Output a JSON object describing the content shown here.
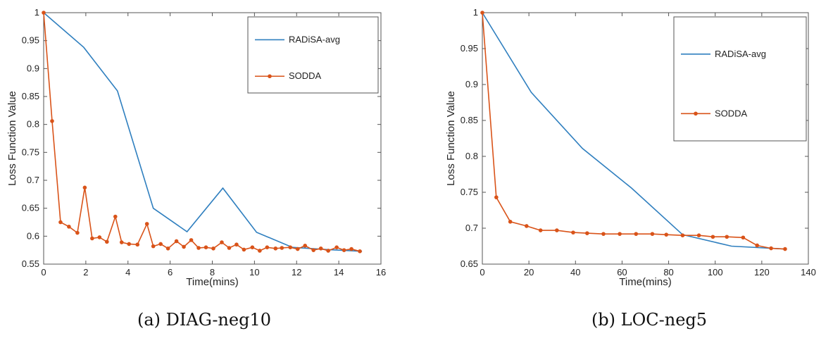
{
  "colors": {
    "radisa": "#2f7fbf",
    "sodda": "#d95319",
    "axis": "#555555"
  },
  "chart_data": [
    {
      "type": "line",
      "caption": "(a) DIAG-neg10",
      "xlabel": "Time(mins)",
      "ylabel": "Loss Function Value",
      "xlim": [
        0,
        16
      ],
      "ylim": [
        0.55,
        1
      ],
      "xticks": [
        0,
        2,
        4,
        6,
        8,
        10,
        12,
        14,
        16
      ],
      "yticks": [
        0.55,
        0.6,
        0.65,
        0.7,
        0.75,
        0.8,
        0.85,
        0.9,
        0.95,
        1
      ],
      "ytick_labels": [
        "0.55",
        "0.6",
        "0.65",
        "0.7",
        "0.75",
        "0.8",
        "0.85",
        "0.9",
        "0.95",
        "1"
      ],
      "grid": false,
      "legend": "top-right",
      "series": [
        {
          "name": "RADiSA-avg",
          "marker": false,
          "x": [
            0,
            1.9,
            3.5,
            5.2,
            6.8,
            8.5,
            10.1,
            11.8,
            13.5,
            15.1
          ],
          "y": [
            1.0,
            0.938,
            0.86,
            0.65,
            0.608,
            0.686,
            0.607,
            0.58,
            0.576,
            0.573
          ]
        },
        {
          "name": "SODDA",
          "marker": true,
          "x": [
            0,
            0.4,
            0.8,
            1.2,
            1.6,
            1.95,
            2.3,
            2.65,
            3.0,
            3.4,
            3.7,
            4.05,
            4.45,
            4.9,
            5.2,
            5.55,
            5.9,
            6.3,
            6.65,
            7.0,
            7.35,
            7.7,
            8.05,
            8.45,
            8.8,
            9.15,
            9.5,
            9.9,
            10.25,
            10.6,
            11.0,
            11.3,
            11.7,
            12.05,
            12.4,
            12.8,
            13.15,
            13.5,
            13.9,
            14.25,
            14.6,
            15.0
          ],
          "y": [
            1.0,
            0.806,
            0.625,
            0.617,
            0.606,
            0.687,
            0.596,
            0.598,
            0.59,
            0.635,
            0.589,
            0.586,
            0.585,
            0.622,
            0.582,
            0.586,
            0.578,
            0.591,
            0.581,
            0.593,
            0.579,
            0.58,
            0.578,
            0.589,
            0.579,
            0.585,
            0.576,
            0.58,
            0.574,
            0.58,
            0.578,
            0.579,
            0.58,
            0.577,
            0.583,
            0.575,
            0.578,
            0.574,
            0.58,
            0.575,
            0.577,
            0.573
          ]
        }
      ]
    },
    {
      "type": "line",
      "caption": "(b) LOC-neg5",
      "xlabel": "Time(mins)",
      "ylabel": "Loss Function Value",
      "xlim": [
        0,
        140
      ],
      "ylim": [
        0.65,
        1
      ],
      "xticks": [
        0,
        20,
        40,
        60,
        80,
        100,
        120,
        140
      ],
      "yticks": [
        0.65,
        0.7,
        0.75,
        0.8,
        0.85,
        0.9,
        0.95,
        1
      ],
      "ytick_labels": [
        "0.65",
        "0.7",
        "0.75",
        "0.8",
        "0.85",
        "0.9",
        "0.95",
        "1"
      ],
      "grid": false,
      "legend": "top-right",
      "series": [
        {
          "name": "RADiSA-avg",
          "marker": false,
          "x": [
            0,
            21,
            43,
            64,
            86,
            107,
            130
          ],
          "y": [
            1.0,
            0.889,
            0.811,
            0.756,
            0.691,
            0.675,
            0.671
          ]
        },
        {
          "name": "SODDA",
          "marker": true,
          "x": [
            0,
            6,
            12,
            19,
            25,
            32,
            39,
            45,
            52,
            59,
            66,
            73,
            79,
            86,
            93,
            99,
            105,
            112,
            118,
            124,
            130
          ],
          "y": [
            1.0,
            0.743,
            0.709,
            0.703,
            0.697,
            0.697,
            0.694,
            0.693,
            0.692,
            0.692,
            0.692,
            0.692,
            0.691,
            0.69,
            0.69,
            0.688,
            0.688,
            0.687,
            0.676,
            0.672,
            0.671
          ]
        }
      ]
    }
  ]
}
